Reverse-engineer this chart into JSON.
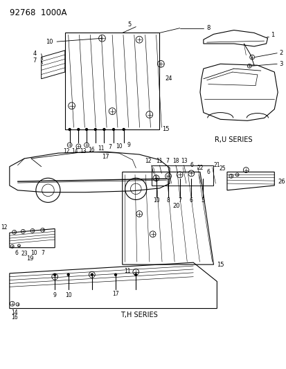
{
  "title": "92768  1000A",
  "bg_color": "#ffffff",
  "line_color": "#000000",
  "fig_width": 4.14,
  "fig_height": 5.33,
  "ru_series_label": "R,U SERIES",
  "th_series_label": "T,H SERIES"
}
